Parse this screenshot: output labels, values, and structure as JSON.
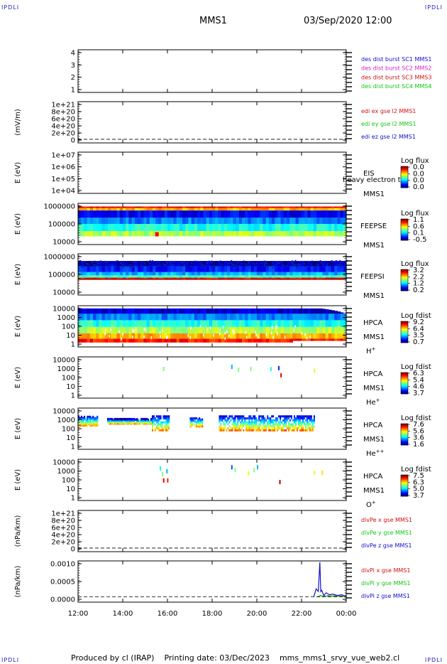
{
  "header": {
    "corner_tl": "IPDLI",
    "corner_tr": "IPDLI",
    "corner_bl": "IPDLI",
    "corner_br": "IPDLI",
    "title": "MMS1",
    "datetime": "03/Sep/2020 12:00"
  },
  "footer": {
    "text": "Produced by cl (IRAP)    Printing date: 03/Dec/2023    mms_mms1_srvy_vue_web2.cl"
  },
  "colors": {
    "blue": "#1010c8",
    "magenta": "#d020d0",
    "red": "#d01010",
    "green": "#10c810"
  },
  "chart_data": [
    {
      "type": "line",
      "panel": "dist-burst",
      "ylabel": "",
      "yticks": [
        "4",
        "3",
        "2",
        "1"
      ],
      "ylim": [
        0.6,
        4.4
      ],
      "legend_placement": "right",
      "series": [
        {
          "name": "des dist burst SC1 MMS1",
          "color": "blue",
          "values": []
        },
        {
          "name": "des dist burst SC2 MMS2",
          "color": "magenta",
          "values": []
        },
        {
          "name": "des dist burst SC3 MMS3",
          "color": "red",
          "values": []
        },
        {
          "name": "des dist burst SC4 MMS4",
          "color": "green",
          "values": []
        }
      ]
    },
    {
      "type": "line",
      "panel": "edi-e",
      "ylabel": "(mV/m)",
      "yticks": [
        "1e+21",
        "8e+20",
        "6e+20",
        "4e+20",
        "2e+20",
        "0"
      ],
      "ylim": [
        -1e+20,
        1.05e+21
      ],
      "zero_line": true,
      "legend_placement": "right",
      "series": [
        {
          "name": "edi ex gse l2 MMS1",
          "color": "red",
          "values": []
        },
        {
          "name": "edi ey gse l2 MMS1",
          "color": "green",
          "values": []
        },
        {
          "name": "edi ez gse l2 MMS1",
          "color": "blue",
          "values": []
        }
      ]
    },
    {
      "type": "heatmap",
      "panel": "eis",
      "ylabel": "E (eV)",
      "yticks": [
        "1e+07",
        "1e+06",
        "1e+05",
        "1e+04"
      ],
      "scale": "log",
      "ylim": [
        10000,
        10000000
      ],
      "instrument": "EIS",
      "species": "heavy electron to",
      "spacecraft": "MMS1",
      "colorbar_title": "Log flux",
      "colorbar_ticks": [
        "0.0",
        "0.0",
        "0.0",
        "0.0"
      ]
    },
    {
      "type": "heatmap",
      "panel": "feeps-e",
      "ylabel": "E (eV)",
      "yticks": [
        "1000000",
        "100000",
        "10000"
      ],
      "scale": "log",
      "ylim": [
        10000,
        1000000
      ],
      "instrument": "FEEPSE",
      "spacecraft": "MMS1",
      "colorbar_title": "Log flux",
      "colorbar_ticks": [
        "1.1",
        "0.6",
        "0.1",
        "-0.5"
      ],
      "bands": [
        {
          "from": 25000,
          "to": 45000,
          "level": 0.55
        },
        {
          "from": 45000,
          "to": 100000,
          "level": 0.4
        },
        {
          "from": 100000,
          "to": 200000,
          "level": 0.25
        },
        {
          "from": 200000,
          "to": 450000,
          "level": 0.12
        },
        {
          "from": 450000,
          "to": 600000,
          "level": 0.7
        },
        {
          "from": 600000,
          "to": 700000,
          "level": 0.9
        }
      ]
    },
    {
      "type": "heatmap",
      "panel": "feeps-i",
      "ylabel": "E (eV)",
      "yticks": [
        "1000000",
        "100000",
        "10000"
      ],
      "scale": "log",
      "ylim": [
        10000,
        1000000
      ],
      "instrument": "FEEPSI",
      "spacecraft": "MMS1",
      "colorbar_title": "Log flux",
      "colorbar_ticks": [
        "3.2",
        "2.2",
        "1.2",
        "0.2"
      ],
      "bands": [
        {
          "from": 55000,
          "to": 62000,
          "level": 1.0
        },
        {
          "from": 62000,
          "to": 70000,
          "level": 0.85
        },
        {
          "from": 70000,
          "to": 90000,
          "level": 0.45
        },
        {
          "from": 90000,
          "to": 130000,
          "level": 0.3
        },
        {
          "from": 130000,
          "to": 250000,
          "level": 0.15
        },
        {
          "from": 250000,
          "to": 450000,
          "level": 0.05
        }
      ]
    },
    {
      "type": "heatmap",
      "panel": "hpca-h",
      "ylabel": "E (eV)",
      "yticks": [
        "10000",
        "1000",
        "100",
        "10",
        "1"
      ],
      "scale": "log",
      "ylim": [
        1,
        30000
      ],
      "instrument": "HPCA",
      "spacecraft": "MMS1",
      "species": "H+",
      "colorbar_title": "Log fdist",
      "colorbar_ticks": [
        "9.2",
        "6.4",
        "3.5",
        "0.7"
      ],
      "bands": [
        {
          "from": 3,
          "to": 8,
          "level": 0.85
        },
        {
          "from": 8,
          "to": 30,
          "level": 0.7
        },
        {
          "from": 30,
          "to": 150,
          "level": 0.55
        },
        {
          "from": 150,
          "to": 800,
          "level": 0.4
        },
        {
          "from": 800,
          "to": 4000,
          "level": 0.25
        },
        {
          "from": 4000,
          "to": 15000,
          "level": 0.08
        }
      ]
    },
    {
      "type": "heatmap",
      "panel": "hpca-he",
      "ylabel": "E (eV)",
      "yticks": [
        "10000",
        "1000",
        "100",
        "10",
        "1"
      ],
      "scale": "log",
      "ylim": [
        1,
        30000
      ],
      "instrument": "HPCA",
      "spacecraft": "MMS1",
      "species": "He+",
      "colorbar_title": "Log fdist",
      "colorbar_ticks": [
        "6.3",
        "5.4",
        "4.6",
        "3.7"
      ],
      "points": [
        {
          "t": 15.8,
          "e": 1500,
          "level": 0.5
        },
        {
          "t": 18.85,
          "e": 2500,
          "level": 0.3
        },
        {
          "t": 19.15,
          "e": 1200,
          "level": 0.5
        },
        {
          "t": 19.7,
          "e": 1500,
          "level": 0.5
        },
        {
          "t": 20.6,
          "e": 1400,
          "level": 0.4
        },
        {
          "t": 20.95,
          "e": 1800,
          "level": 0.15
        },
        {
          "t": 21.05,
          "e": 300,
          "level": 0.9
        },
        {
          "t": 22.55,
          "e": 900,
          "level": 0.6
        }
      ]
    },
    {
      "type": "heatmap",
      "panel": "hpca-he2",
      "ylabel": "E (eV)",
      "yticks": [
        "10000",
        "1000",
        "100",
        "10",
        "1"
      ],
      "scale": "log",
      "ylim": [
        1,
        30000
      ],
      "instrument": "HPCA",
      "spacecraft": "MMS1",
      "species": "He++",
      "colorbar_title": "Log fdist",
      "colorbar_ticks": [
        "7.6",
        "5.6",
        "3.6",
        "1.6"
      ],
      "patches": [
        {
          "t0": 12.0,
          "t1": 12.9,
          "e0": 500,
          "e1": 6000
        },
        {
          "t0": 13.3,
          "t1": 15.3,
          "e0": 800,
          "e1": 3000
        },
        {
          "t0": 15.3,
          "t1": 16.1,
          "e0": 150,
          "e1": 8000
        },
        {
          "t0": 17.0,
          "t1": 17.6,
          "e0": 400,
          "e1": 4000
        },
        {
          "t0": 18.3,
          "t1": 22.6,
          "e0": 150,
          "e1": 8000
        }
      ]
    },
    {
      "type": "heatmap",
      "panel": "hpca-o",
      "ylabel": "E (eV)",
      "yticks": [
        "10000",
        "1000",
        "100",
        "10",
        "1"
      ],
      "scale": "log",
      "ylim": [
        1,
        30000
      ],
      "instrument": "HPCA",
      "spacecraft": "MMS1",
      "species": "O+",
      "colorbar_title": "Log fdist",
      "colorbar_ticks": [
        "7.5",
        "6.3",
        "5.0",
        "3.7"
      ],
      "points": [
        {
          "t": 15.65,
          "e": 3000,
          "level": 0.4
        },
        {
          "t": 15.75,
          "e": 700,
          "level": 0.5
        },
        {
          "t": 15.8,
          "e": 150,
          "level": 0.9
        },
        {
          "t": 15.95,
          "e": 1500,
          "level": 0.3
        },
        {
          "t": 15.98,
          "e": 150,
          "level": 0.85
        },
        {
          "t": 18.85,
          "e": 4000,
          "level": 0.2
        },
        {
          "t": 19.0,
          "e": 2000,
          "level": 0.5
        },
        {
          "t": 19.6,
          "e": 900,
          "level": 0.6
        },
        {
          "t": 19.85,
          "e": 2000,
          "level": 0.5
        },
        {
          "t": 20.0,
          "e": 4000,
          "level": 0.3
        },
        {
          "t": 21.0,
          "e": 100,
          "level": 0.95
        },
        {
          "t": 22.55,
          "e": 1000,
          "level": 0.6
        },
        {
          "t": 22.9,
          "e": 1000,
          "level": 0.65
        }
      ]
    },
    {
      "type": "line",
      "panel": "divpe",
      "ylabel": "(nPa/km)",
      "yticks": [
        "1e+21",
        "8e+20",
        "6e+20",
        "4e+20",
        "2e+20",
        "0"
      ],
      "ylim": [
        -1e+20,
        1.05e+21
      ],
      "zero_line": true,
      "legend_placement": "right",
      "series": [
        {
          "name": "divPe x gse MMS1",
          "color": "red",
          "values": []
        },
        {
          "name": "divPe y gse MMS1",
          "color": "green",
          "values": []
        },
        {
          "name": "divPe z gse MMS1",
          "color": "blue",
          "values": []
        }
      ]
    },
    {
      "type": "line",
      "panel": "divpi",
      "ylabel": "(nPa/km)",
      "yticks": [
        "0.0010",
        "0.0005",
        "0.0000"
      ],
      "ylim": [
        -0.0002,
        0.00135
      ],
      "zero_line": true,
      "legend_placement": "right",
      "series": [
        {
          "name": "divPi x gse MMS1",
          "color": "red",
          "x": [
            22.7,
            22.85,
            23.0,
            23.2,
            23.5,
            23.8,
            24.0
          ],
          "values": [
            0.0,
            5e-05,
            2e-05,
            4e-05,
            2e-05,
            3e-05,
            0.0
          ]
        },
        {
          "name": "divPi y gse MMS1",
          "color": "green",
          "x": [
            22.7,
            22.85,
            23.0,
            23.2,
            23.5,
            23.8,
            24.0
          ],
          "values": [
            0.0,
            4e-05,
            3e-05,
            2e-05,
            4e-05,
            2e-05,
            0.0
          ]
        },
        {
          "name": "divPi z gse MMS1",
          "color": "blue",
          "x": [
            22.55,
            22.65,
            22.75,
            22.82,
            22.86,
            22.9,
            23.0,
            23.1,
            23.25,
            23.4,
            23.6,
            23.8,
            24.0
          ],
          "values": [
            0.0,
            0.0003,
            0.0002,
            0.0013,
            0.0002,
            0.00025,
            5e-05,
            0.00015,
            8e-05,
            0.0001,
            5e-05,
            8e-05,
            0.0
          ]
        }
      ]
    }
  ],
  "xaxis": {
    "ticks": [
      "12:00",
      "14:00",
      "16:00",
      "18:00",
      "20:00",
      "22:00",
      "00:00"
    ],
    "range_hours": [
      12,
      24
    ]
  }
}
